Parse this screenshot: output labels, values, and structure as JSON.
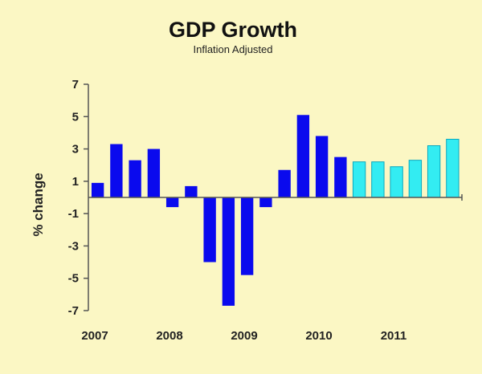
{
  "chart_data": {
    "type": "bar",
    "title": "GDP Growth",
    "subtitle": "Inflation Adjusted",
    "xlabel": "",
    "ylabel": "% change",
    "ylim": [
      -7,
      7
    ],
    "yticks": [
      7,
      5,
      3,
      1,
      -1,
      -3,
      -5,
      -7
    ],
    "xtick_labels": [
      {
        "label": "2007",
        "at_bar": 0
      },
      {
        "label": "2008",
        "at_bar": 4
      },
      {
        "label": "2009",
        "at_bar": 8
      },
      {
        "label": "2010",
        "at_bar": 12
      },
      {
        "label": "2011",
        "at_bar": 16
      }
    ],
    "grid": false,
    "legend": "none",
    "colors": {
      "actual": "#0a0aee",
      "forecast": "#33ecf2",
      "forecast_stroke": "#0aa8c0",
      "axis": "#555555"
    },
    "series": [
      {
        "kind": "actual",
        "values": [
          0.9,
          3.3,
          2.3,
          3.0,
          -0.6,
          0.7,
          -4.0,
          -6.7,
          -4.8,
          -0.6,
          1.7,
          5.1,
          3.8,
          2.5
        ]
      },
      {
        "kind": "forecast",
        "values": [
          2.2,
          2.2,
          1.9,
          2.3,
          3.2,
          3.6
        ]
      }
    ]
  }
}
